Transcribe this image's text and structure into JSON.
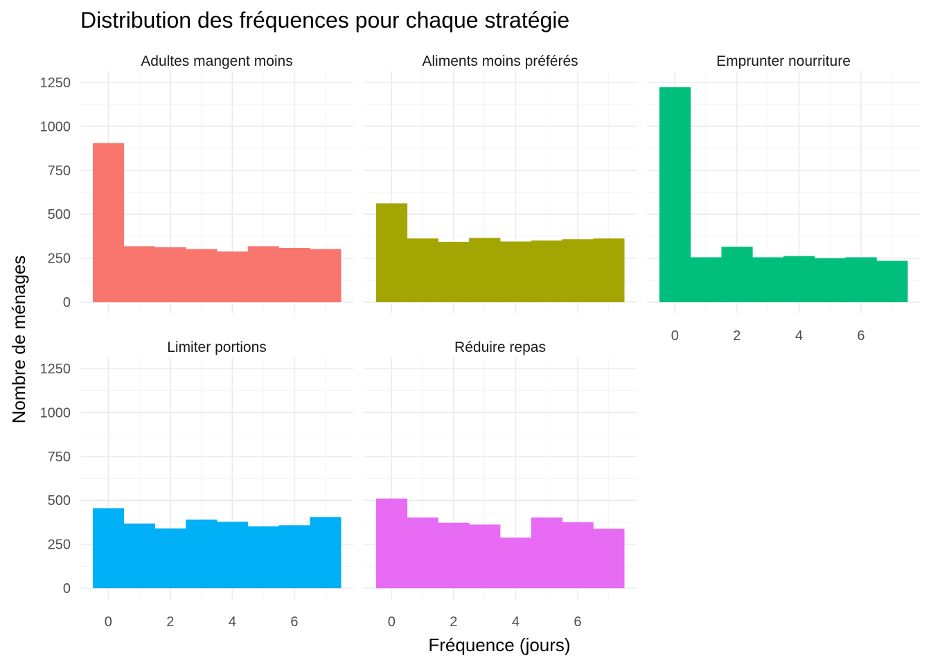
{
  "chart_data": {
    "type": "bar",
    "title": "Distribution des fréquences pour chaque stratégie",
    "xlabel": "Fréquence (jours)",
    "ylabel": "Nombre de ménages",
    "xlim": [
      -0.5,
      7.5
    ],
    "ylim": [
      0,
      1250
    ],
    "x_ticks": [
      0,
      2,
      4,
      6
    ],
    "y_ticks": [
      0,
      250,
      500,
      750,
      1000,
      1250
    ],
    "grid": true,
    "bins": [
      0,
      1,
      2,
      3,
      4,
      5,
      6,
      7
    ],
    "panels": [
      {
        "name": "Adultes mangent moins",
        "color": "#F8766D",
        "values": [
          905,
          318,
          312,
          302,
          288,
          318,
          308,
          302
        ]
      },
      {
        "name": "Aliments moins préférés",
        "color": "#A3A500",
        "values": [
          562,
          362,
          343,
          365,
          345,
          350,
          358,
          362
        ]
      },
      {
        "name": "Emprunter nourriture",
        "color": "#00BF7D",
        "values": [
          1222,
          255,
          315,
          255,
          262,
          250,
          255,
          235
        ]
      },
      {
        "name": "Limiter portions",
        "color": "#00B0F6",
        "values": [
          455,
          368,
          340,
          390,
          378,
          352,
          358,
          405
        ]
      },
      {
        "name": "Réduire repas",
        "color": "#E76BF3",
        "values": [
          510,
          402,
          372,
          362,
          288,
          402,
          375,
          338
        ]
      }
    ]
  }
}
